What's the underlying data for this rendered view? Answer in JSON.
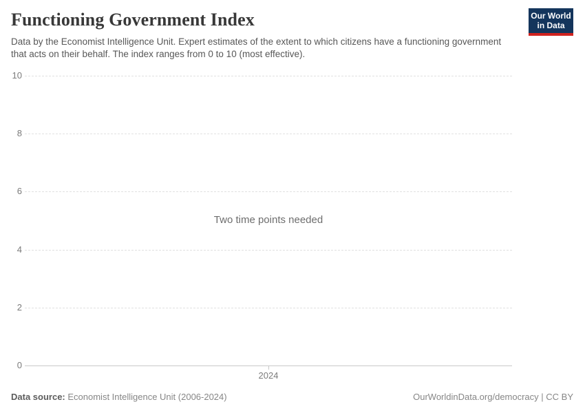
{
  "header": {
    "title": "Functioning Government Index",
    "subtitle": "Data by the Economist Intelligence Unit. Expert estimates of the extent to which citizens have a functioning government that acts on their behalf. The index ranges from 0 to 10 (most effective).",
    "logo": {
      "line1": "Our World",
      "line2": "in Data"
    }
  },
  "chart_data": {
    "type": "line",
    "title": "Functioning Government Index",
    "series": [],
    "x": [],
    "message": "Two time points needed",
    "xlabel": "",
    "ylabel": "",
    "ylim": [
      0,
      10
    ],
    "yticks": [
      0,
      2,
      4,
      6,
      8,
      10
    ],
    "xticks": [
      "2024"
    ],
    "grid": "horizontal-dashed",
    "legend_position": "none"
  },
  "axes": {
    "yticks": [
      "10",
      "8",
      "6",
      "4",
      "2",
      "0"
    ],
    "xtick": "2024"
  },
  "plot": {
    "message": "Two time points needed"
  },
  "footer": {
    "source_label": "Data source:",
    "source_value": " Economist Intelligence Unit (2006-2024)",
    "rights": "OurWorldinData.org/democracy | CC BY"
  },
  "colors": {
    "logo_background": "#14355c",
    "logo_bar": "#d0231f",
    "title_text": "#383838",
    "subtitle_text": "#575757",
    "tick_text": "#7b7b7b",
    "gridline": "#e0e0e0",
    "axis_line": "#c8c8c8",
    "message_text": "#6d6d6d",
    "footer_text": "#868686"
  }
}
